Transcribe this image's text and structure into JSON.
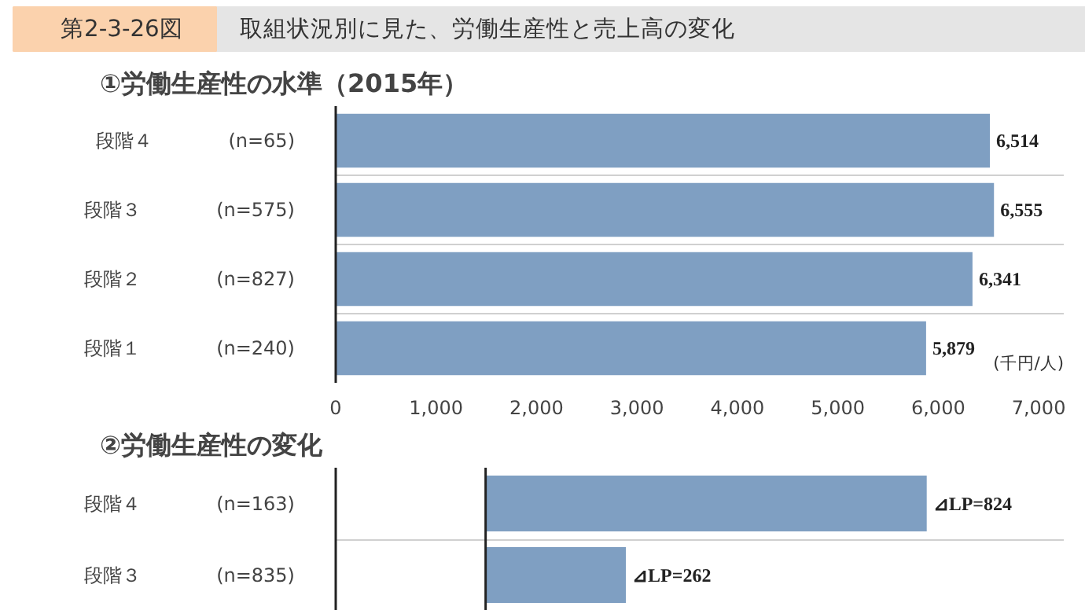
{
  "chart_data": [
    {
      "type": "other",
      "title": "第2-3-26図",
      "subtitle": "取組状況別に見た、労働生産性と売上高の変化"
    },
    {
      "type": "bar",
      "orientation": "horizontal",
      "title": "①労働生産性の水準（2015年）",
      "xlabel": "(千円/人)",
      "categories": [
        "段階４　　　　(n=65)",
        "段階３　　　　(n=575)",
        "段階２　　　　(n=827)",
        "段階１　　　　(n=240)"
      ],
      "values": [
        6514,
        6555,
        6341,
        5879
      ],
      "value_labels": [
        "6,514",
        "6,555",
        "6,341",
        "5,879"
      ],
      "color": "#7f9fc2",
      "grid": "y",
      "xlim": [
        0,
        7250
      ],
      "xticks": [
        0,
        {
          "value": 1000,
          "label": "1,000"
        },
        {
          "value": 2000,
          "label": "2,000"
        },
        {
          "value": 3000,
          "label": "3,000"
        },
        {
          "value": 4000,
          "label": "4,000"
        },
        {
          "value": 5000,
          "label": "5,000"
        },
        {
          "value": 6000,
          "label": "6,000"
        },
        {
          "value": 7000,
          "label": "7,000"
        }
      ]
    },
    {
      "type": "bar",
      "orientation": "horizontal",
      "title": "②労働生産性の変化",
      "categories": [
        "段階４　　　　(n=163)",
        "段階３　　　　(n=835)"
      ],
      "values": [
        824,
        262
      ],
      "value_labels": [
        "⊿LP=824",
        "⊿LP=262"
      ],
      "color": "#7f9fc2",
      "grid": "y",
      "xlim": [
        -280,
        1080
      ],
      "tick_labels": "y",
      "ref_lines": [
        {
          "axis": "x",
          "value": 0,
          "color": "#222222"
        }
      ]
    }
  ]
}
